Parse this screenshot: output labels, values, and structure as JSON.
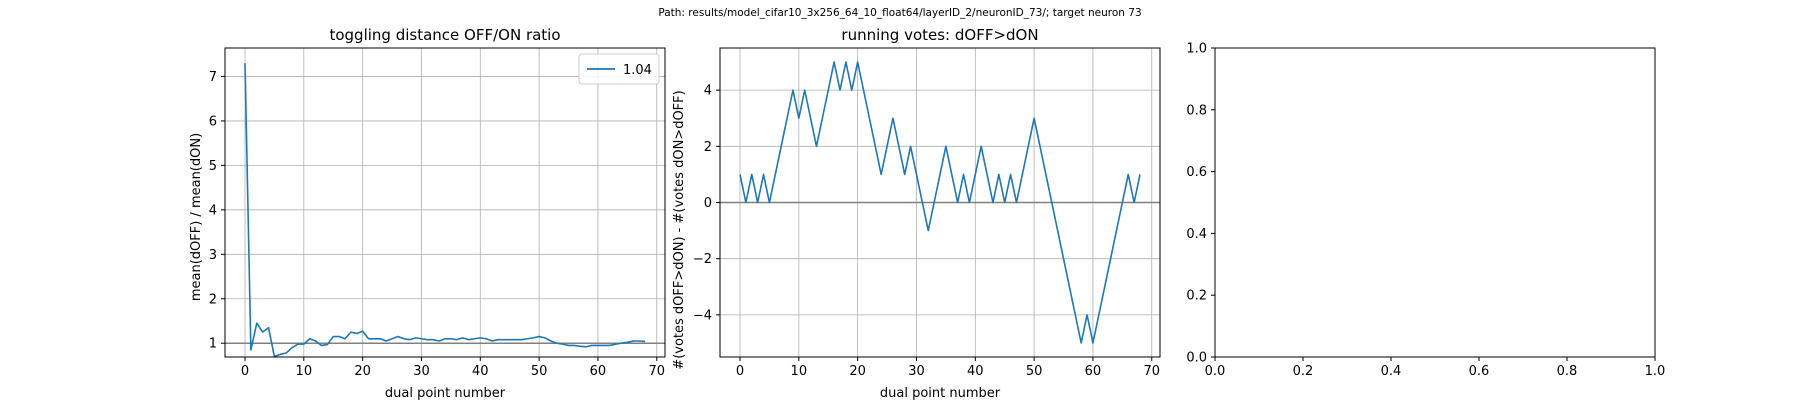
{
  "suptitle": "Path: results/model_cifar10_3x256_64_10_float64/layerID_2/neuronID_73/; target neuron 73",
  "chart_data": [
    {
      "type": "line",
      "title": "toggling distance OFF/ON ratio",
      "xlabel": "dual point number",
      "ylabel": "mean(dOFF) / mean(dON)",
      "xlim": [
        -3.4,
        71.4
      ],
      "ylim": [
        0.69,
        7.64
      ],
      "xticks": [
        0,
        10,
        20,
        30,
        40,
        50,
        60,
        70
      ],
      "yticks": [
        1,
        2,
        3,
        4,
        5,
        6,
        7
      ],
      "grid": true,
      "legend": "top-right",
      "color": "#1f77b4",
      "hline": {
        "y": 1,
        "color": "#808080"
      },
      "series": [
        {
          "name": "1.04",
          "x": [
            0,
            1,
            2,
            3,
            4,
            5,
            6,
            7,
            8,
            9,
            10,
            11,
            12,
            13,
            14,
            15,
            16,
            17,
            18,
            19,
            20,
            21,
            22,
            23,
            24,
            25,
            26,
            27,
            28,
            29,
            30,
            31,
            32,
            33,
            34,
            35,
            36,
            37,
            38,
            39,
            40,
            41,
            42,
            43,
            44,
            45,
            46,
            47,
            48,
            49,
            50,
            51,
            52,
            53,
            54,
            55,
            56,
            57,
            58,
            59,
            60,
            61,
            62,
            63,
            64,
            65,
            66,
            67,
            68
          ],
          "y": [
            7.3,
            0.85,
            1.45,
            1.25,
            1.35,
            0.7,
            0.75,
            0.78,
            0.9,
            0.98,
            0.98,
            1.1,
            1.05,
            0.95,
            0.97,
            1.15,
            1.15,
            1.1,
            1.25,
            1.22,
            1.27,
            1.1,
            1.1,
            1.1,
            1.05,
            1.1,
            1.15,
            1.1,
            1.08,
            1.12,
            1.1,
            1.08,
            1.08,
            1.05,
            1.1,
            1.1,
            1.08,
            1.12,
            1.08,
            1.1,
            1.12,
            1.1,
            1.05,
            1.08,
            1.08,
            1.08,
            1.08,
            1.08,
            1.1,
            1.12,
            1.15,
            1.12,
            1.05,
            1.0,
            0.98,
            0.95,
            0.95,
            0.93,
            0.92,
            0.95,
            0.95,
            0.95,
            0.95,
            0.98,
            1.0,
            1.02,
            1.05,
            1.05,
            1.04
          ]
        }
      ]
    },
    {
      "type": "line",
      "title": "running votes: dOFF>dON",
      "xlabel": "dual point number",
      "ylabel": "#(votes dOFF>dON) - #(votes dON>dOFF)",
      "xlim": [
        -3.4,
        71.4
      ],
      "ylim": [
        -5.5,
        5.5
      ],
      "xticks": [
        0,
        10,
        20,
        30,
        40,
        50,
        60,
        70
      ],
      "yticks": [
        -4,
        -2,
        0,
        2,
        4
      ],
      "grid": true,
      "color": "#1f77b4",
      "hline": {
        "y": 0,
        "color": "#808080"
      },
      "series": [
        {
          "x": [
            0,
            1,
            2,
            3,
            4,
            5,
            6,
            7,
            8,
            9,
            10,
            11,
            12,
            13,
            14,
            15,
            16,
            17,
            18,
            19,
            20,
            21,
            22,
            23,
            24,
            25,
            26,
            27,
            28,
            29,
            30,
            31,
            32,
            33,
            34,
            35,
            36,
            37,
            38,
            39,
            40,
            41,
            42,
            43,
            44,
            45,
            46,
            47,
            48,
            49,
            50,
            51,
            52,
            53,
            54,
            55,
            56,
            57,
            58,
            59,
            60,
            61,
            62,
            63,
            64,
            65,
            66,
            67,
            68
          ],
          "y": [
            1,
            0,
            1,
            0,
            1,
            0,
            1,
            2,
            3,
            4,
            3,
            4,
            3,
            2,
            3,
            4,
            5,
            4,
            5,
            4,
            5,
            4,
            3,
            2,
            1,
            2,
            3,
            2,
            1,
            2,
            1,
            0,
            -1,
            0,
            1,
            2,
            1,
            0,
            1,
            0,
            1,
            2,
            1,
            0,
            1,
            0,
            1,
            0,
            1,
            2,
            3,
            2,
            1,
            0,
            -1,
            -2,
            -3,
            -4,
            -5,
            -4,
            -5,
            -4,
            -3,
            -2,
            -1,
            0,
            1,
            0,
            1
          ]
        }
      ]
    },
    {
      "type": "line",
      "title": "",
      "xlim": [
        0,
        1
      ],
      "ylim": [
        0,
        1
      ],
      "xticks": [
        0.0,
        0.2,
        0.4,
        0.6,
        0.8,
        1.0
      ],
      "yticks": [
        0.0,
        0.2,
        0.4,
        0.6,
        0.8,
        1.0
      ],
      "grid": false,
      "series": []
    }
  ]
}
